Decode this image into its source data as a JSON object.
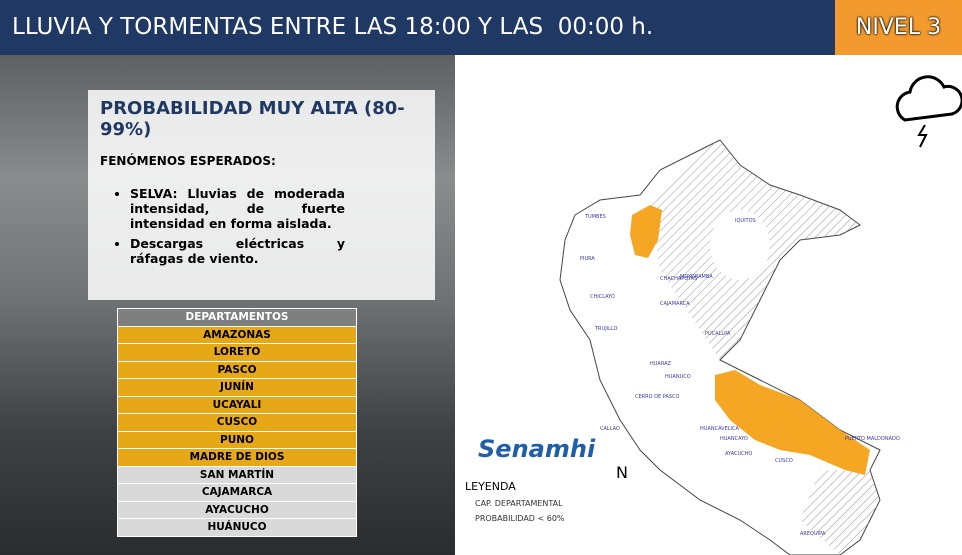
{
  "header": {
    "title": "LLUVIA Y TORMENTAS ENTRE LAS 18:00 Y LAS  00:00 h.",
    "level": "NIVEL 3"
  },
  "panel": {
    "title": "PROBABILIDAD  MUY ALTA (80-99%)",
    "subtitle": "FENÓMENOS ESPERADOS:",
    "bullets": [
      "SELVA: Lluvias de moderada intensidad, de fuerte intensidad en forma aislada.",
      "Descargas eléctricas y ráfagas de viento."
    ]
  },
  "table": {
    "header": "DEPARTAMENTOS",
    "rows": [
      "AMAZONAS",
      "LORETO",
      "PASCO",
      "JUNÍN",
      "UCAYALI",
      "CUSCO",
      "PUNO",
      "MADRE DE DIOS",
      "SAN MARTÍN",
      "CAJAMARCA",
      "AYACUCHO",
      "HUÁNUCO"
    ]
  },
  "logo": "Senamhi",
  "legend": {
    "title": "LEYENDA",
    "items": [
      "CAP. DEPARTAMENTAL",
      "PROBABILIDAD < 60%"
    ]
  },
  "compass": "N",
  "map_labels": [
    "TUMBES",
    "IQUITOS",
    "PIURA",
    "CHACHAPOYAS",
    "MOYOBAMBA",
    "CHICLAYO",
    "CAJAMARCA",
    "TRUJILLO",
    "PUCALLPA",
    "HUARAZ",
    "HUANUCO",
    "CERRO DE PASCO",
    "CALLAO",
    "HUANCAVELICA",
    "HUANCAYO",
    "AYACUCHO",
    "CUSCO",
    "PUERTO MALDONADO",
    "AREQUIPA"
  ]
}
